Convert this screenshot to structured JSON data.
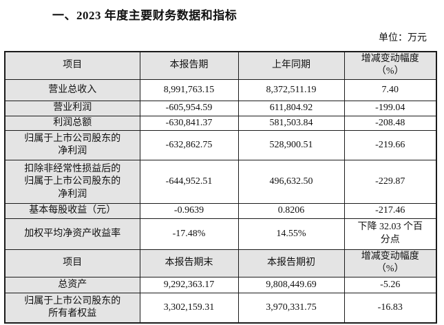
{
  "page": {
    "title": "一、2023 年度主要财务数据和指标",
    "unit_label": "单位：万元"
  },
  "table": {
    "sections": [
      {
        "header": [
          "项目",
          "本报告期",
          "上年同期",
          "增减变动幅度\n（%）"
        ],
        "rows": [
          {
            "label": "营业总收入",
            "current": "8,991,763.15",
            "prior": "8,372,511.19",
            "change": "7.40"
          },
          {
            "label": "营业利润",
            "current": "-605,954.59",
            "prior": "611,804.92",
            "change": "-199.04"
          },
          {
            "label": "利润总额",
            "current": "-630,841.37",
            "prior": "581,503.84",
            "change": "-208.48"
          },
          {
            "label": "归属于上市公司股东的\n净利润",
            "current": "-632,862.75",
            "prior": "528,900.51",
            "change": "-219.66"
          },
          {
            "label": "扣除非经常性损益后的\n归属于上市公司股东的\n净利润",
            "current": "-644,952.51",
            "prior": "496,632.50",
            "change": "-229.87"
          },
          {
            "label": "基本每股收益（元）",
            "current": "-0.9639",
            "prior": "0.8206",
            "change": "-217.46"
          },
          {
            "label": "加权平均净资产收益率",
            "current": "-17.48%",
            "prior": "14.55%",
            "change": "下降 32.03 个百\n分点"
          }
        ]
      },
      {
        "header": [
          "项目",
          "本报告期末",
          "本报告期初",
          "增减变动幅度\n（%）"
        ],
        "rows": [
          {
            "label": "总资产",
            "current": "9,292,363.17",
            "prior": "9,808,449.69",
            "change": "-5.26"
          },
          {
            "label": "归属于上市公司股东的\n所有者权益",
            "current": "3,302,159.31",
            "prior": "3,970,331.75",
            "change": "-16.83"
          }
        ]
      }
    ]
  }
}
